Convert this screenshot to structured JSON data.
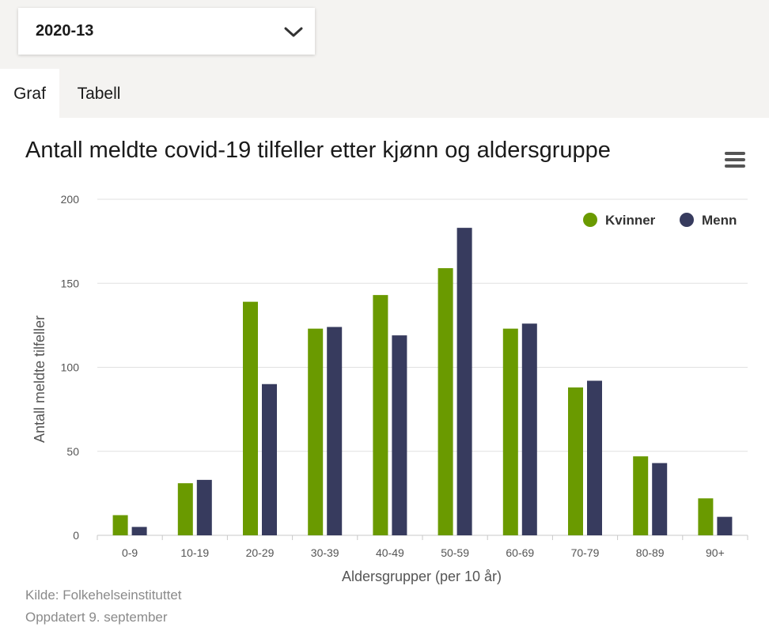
{
  "selector": {
    "value": "2020-13",
    "icon": "chevron-down-icon"
  },
  "tabs": [
    {
      "label": "Graf",
      "active": true
    },
    {
      "label": "Tabell",
      "active": false
    }
  ],
  "menu_icon": "hamburger-menu-icon",
  "colors": {
    "kvinner": "#6a9a00",
    "menn": "#373b5e",
    "grid": "#e0e0e0",
    "axis_text": "#555555",
    "background_band": "#f4f3f1"
  },
  "chart_data": {
    "type": "bar",
    "title": "Antall meldte covid-19 tilfeller etter kjønn og aldersgruppe",
    "xlabel": "Aldersgrupper (per 10 år)",
    "ylabel": "Antall meldte tilfeller",
    "categories": [
      "0-9",
      "10-19",
      "20-29",
      "30-39",
      "40-49",
      "50-59",
      "60-69",
      "70-79",
      "80-89",
      "90+"
    ],
    "series": [
      {
        "name": "Kvinner",
        "values": [
          12,
          31,
          139,
          123,
          143,
          159,
          123,
          88,
          47,
          22
        ]
      },
      {
        "name": "Menn",
        "values": [
          5,
          33,
          90,
          124,
          119,
          183,
          126,
          92,
          43,
          11
        ]
      }
    ],
    "ylim": [
      0,
      200
    ],
    "yticks": [
      0,
      50,
      100,
      150,
      200
    ],
    "grid": true,
    "legend_position": "top-right"
  },
  "footer": {
    "source": "Kilde: Folkehelseinstituttet",
    "updated": "Oppdatert 9. september"
  }
}
